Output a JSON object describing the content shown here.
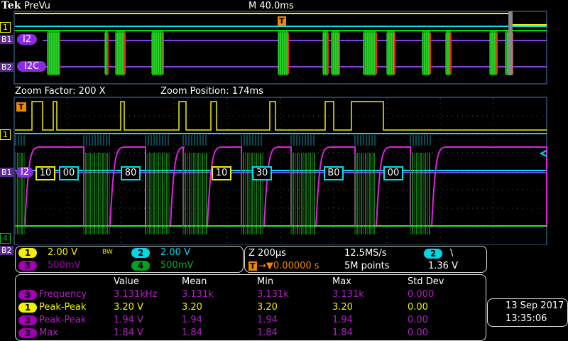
{
  "header": {
    "brand": "Tek",
    "mode": "PreVu",
    "timebase": "M 40.0ms"
  },
  "overview": {
    "bus1_label": "I2",
    "bus2_label": "I2C",
    "ch1_marker": "1",
    "b1_marker": "B1",
    "b2_marker": "B2",
    "trigger_marker": "T"
  },
  "zoom": {
    "factor": "Zoom Factor: 200 X",
    "position": "Zoom Position: 174ms",
    "decode": [
      {
        "text": "10",
        "color": "#f0f000"
      },
      {
        "text": "00",
        "color": "#00e0f0"
      },
      {
        "text": "80",
        "color": "#00e0f0"
      },
      {
        "text": "10",
        "color": "#f0f000"
      },
      {
        "text": "30",
        "color": "#00e0f0"
      },
      {
        "text": "B0",
        "color": "#00e0f0"
      },
      {
        "text": "00",
        "color": "#00e0f0"
      }
    ],
    "bus_label": "I2",
    "markers": {
      "ch1": "1",
      "b1": "B1",
      "ch4": "4",
      "b2": "B2",
      "trigger": "T"
    }
  },
  "channels": [
    {
      "num": "1",
      "scale": "2.00 V",
      "color": "#f0f000"
    },
    {
      "num": "2",
      "scale": "2.00 V",
      "color": "#00d8e8"
    },
    {
      "num": "3",
      "scale": "500mV",
      "color": "#a000b0"
    },
    {
      "num": "4",
      "scale": "500mV",
      "color": "#00a020"
    }
  ],
  "bw_label": "BW",
  "horizontal": {
    "zoom_scale": "Z 200µs",
    "sample_rate": "12.5MS/s",
    "trigger_pos": "0.00000 s",
    "record_length": "5M points",
    "trigger_source": "2",
    "trigger_slope": "\\",
    "trigger_level": "1.36 V"
  },
  "measurements": {
    "headers": [
      "Value",
      "Mean",
      "Min",
      "Max",
      "Std Dev"
    ],
    "rows": [
      {
        "ch": "3",
        "name": "Frequency",
        "values": [
          "3.131kHz",
          "3.131k",
          "3.131k",
          "3.131k",
          "0.000"
        ],
        "color": "#a000b0"
      },
      {
        "ch": "1",
        "name": "Peak-Peak",
        "values": [
          "3.20 V",
          "3.20",
          "3.20",
          "3.20",
          "0.00"
        ],
        "color": "#f0f000"
      },
      {
        "ch": "3",
        "name": "Peak-Peak",
        "values": [
          "1.94 V",
          "1.94",
          "1.94",
          "1.94",
          "0.00"
        ],
        "color": "#a000b0"
      },
      {
        "ch": "3",
        "name": "Max",
        "values": [
          "1.84 V",
          "1.84",
          "1.84",
          "1.84",
          "0.00"
        ],
        "color": "#a000b0"
      }
    ]
  },
  "datetime": {
    "date": "13 Sep  2017",
    "time": "13:35:06"
  }
}
